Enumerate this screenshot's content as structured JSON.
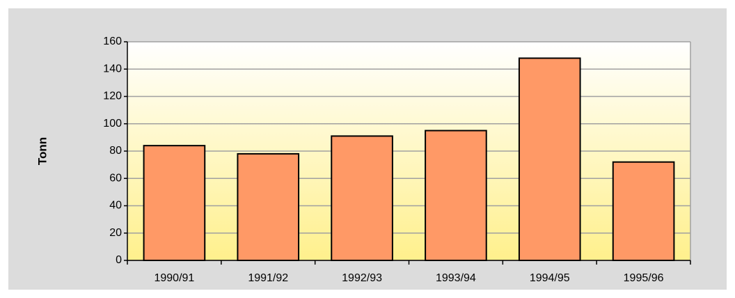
{
  "chart_data": {
    "type": "bar",
    "ylabel": "Tonn",
    "categories": [
      "1990/91",
      "1991/92",
      "1992/93",
      "1993/94",
      "1994/95",
      "1995/96"
    ],
    "values": [
      84,
      78,
      91,
      95,
      148,
      72
    ],
    "color": "#ff9966",
    "ylim": [
      0,
      160
    ],
    "yticks": [
      0,
      20,
      40,
      60,
      80,
      100,
      120,
      140,
      160
    ],
    "grid": true
  }
}
